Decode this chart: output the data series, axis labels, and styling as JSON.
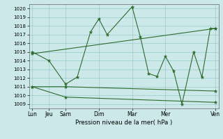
{
  "xlabel": "Pression niveau de la mer( hPa )",
  "bg_color": "#cce8e8",
  "grid_color": "#99cccc",
  "line_color": "#2d6b2d",
  "ylim": [
    1008.5,
    1020.5
  ],
  "yticks": [
    1009,
    1010,
    1011,
    1012,
    1013,
    1014,
    1015,
    1016,
    1017,
    1018,
    1019,
    1020
  ],
  "xlim": [
    -0.2,
    11.2
  ],
  "x_tick_positions": [
    0,
    1,
    2,
    4,
    6,
    8,
    11
  ],
  "x_tick_labels": [
    "Lun",
    "Jeu",
    "Sam",
    "Dim",
    "Mar",
    "Mer",
    "Ven"
  ],
  "series": [
    {
      "x": [
        0,
        1,
        2,
        2.7,
        3.5,
        4.0,
        4.5,
        6.0,
        6.5,
        7.0,
        7.5,
        8.0,
        8.5,
        9.0,
        9.7,
        10.2,
        10.7,
        11.0
      ],
      "y": [
        1015,
        1014,
        1011.3,
        1012.1,
        1017.3,
        1018.8,
        1017.0,
        1020.2,
        1016.7,
        1012.5,
        1012.2,
        1014.5,
        1012.8,
        1009.0,
        1015.0,
        1012.1,
        1017.7,
        1017.7
      ]
    },
    {
      "x": [
        0,
        11.0
      ],
      "y": [
        1014.8,
        1017.7
      ]
    },
    {
      "x": [
        0,
        2,
        11.0
      ],
      "y": [
        1011.0,
        1011.0,
        1010.5
      ]
    },
    {
      "x": [
        0,
        2,
        11.0
      ],
      "y": [
        1011.0,
        1009.8,
        1009.2
      ]
    }
  ]
}
